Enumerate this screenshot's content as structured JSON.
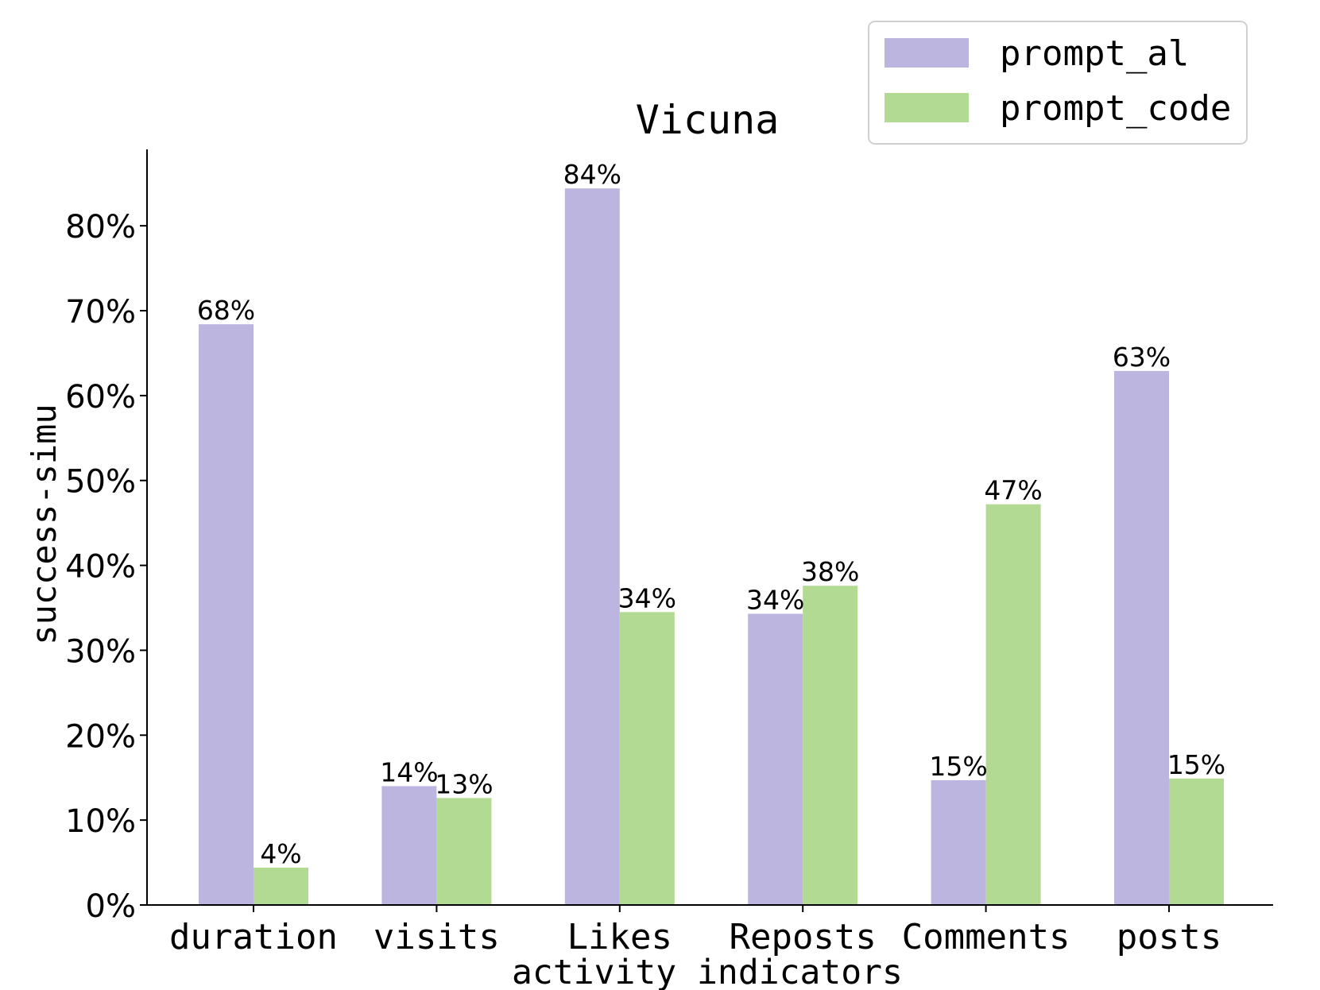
{
  "chart_data": {
    "type": "bar",
    "title": "Vicuna",
    "xlabel": "activity indicators",
    "ylabel": "success-simu",
    "categories": [
      "duration",
      "visits",
      "Likes",
      "Reposts",
      "Comments",
      "posts"
    ],
    "series": [
      {
        "name": "prompt_al",
        "color": "#bcb5e0",
        "values": [
          68.4,
          14.0,
          84.4,
          34.3,
          14.7,
          62.9
        ],
        "labels": [
          "68%",
          "14%",
          "84%",
          "34%",
          "15%",
          "63%"
        ]
      },
      {
        "name": "prompt_code",
        "color": "#b2da93",
        "values": [
          4.4,
          12.6,
          34.5,
          37.6,
          47.2,
          14.9
        ],
        "labels": [
          "4%",
          "13%",
          "34%",
          "38%",
          "47%",
          "15%"
        ]
      }
    ],
    "yticks": [
      0,
      10,
      20,
      30,
      40,
      50,
      60,
      70,
      80
    ],
    "ytick_labels": [
      "0%",
      "10%",
      "20%",
      "30%",
      "40%",
      "50%",
      "60%",
      "70%",
      "80%"
    ],
    "ylim": [
      0,
      89
    ],
    "grid": false,
    "legend_position": "top-right"
  }
}
